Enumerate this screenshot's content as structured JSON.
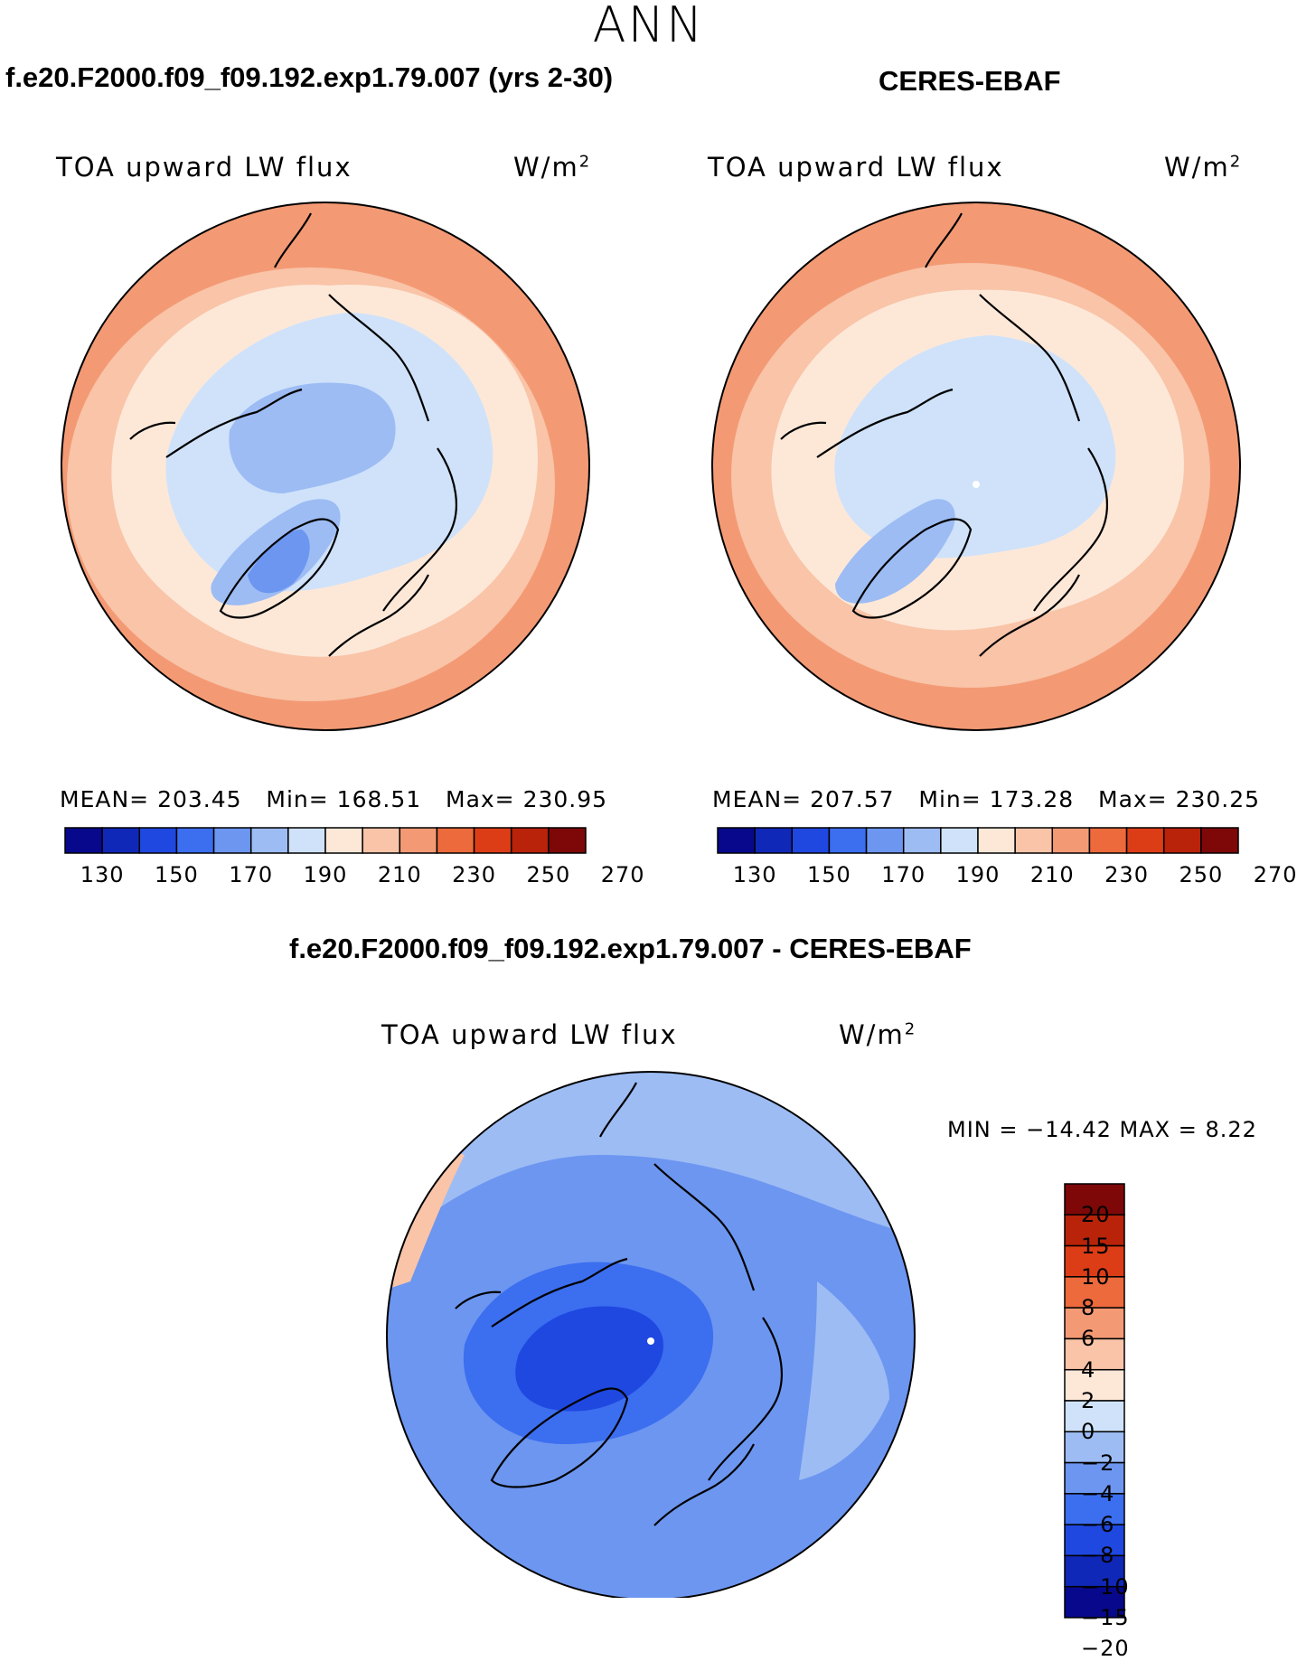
{
  "season": "ANN",
  "panels": {
    "model": {
      "title": "f.e20.F2000.f09_f09.192.exp1.79.007 (yrs 2-30)",
      "variable": "TOA upward LW flux",
      "units": "W/m",
      "units_exp": "2",
      "stats": {
        "mean_label": "MEAN=",
        "mean": "203.45",
        "min_label": "Min=",
        "min": "168.51",
        "max_label": "Max=",
        "max": "230.95"
      }
    },
    "obs": {
      "title": "CERES-EBAF",
      "variable": "TOA upward LW flux",
      "units": "W/m",
      "units_exp": "2",
      "stats": {
        "mean_label": "MEAN=",
        "mean": "207.57",
        "min_label": "Min=",
        "min": "173.28",
        "max_label": "Max=",
        "max": "230.25"
      }
    },
    "diff": {
      "title": "f.e20.F2000.f09_f09.192.exp1.79.007 - CERES-EBAF",
      "variable": "TOA upward LW flux",
      "units": "W/m",
      "units_exp": "2",
      "minmax": "MIN = −14.42 MAX =    8.22"
    }
  },
  "colorbar_abs": {
    "colors": [
      "#08088c",
      "#1028b8",
      "#1f48e0",
      "#3c6ef0",
      "#6c96f0",
      "#9dbcf4",
      "#cfe2fa",
      "#fde8d8",
      "#f9c4a8",
      "#f39a75",
      "#ec6a3c",
      "#dd3d16",
      "#b8230a",
      "#7e0808"
    ],
    "ticks": [
      "130",
      "150",
      "170",
      "190",
      "210",
      "230",
      "250",
      "270"
    ]
  },
  "colorbar_diff": {
    "colors": [
      "#7e0808",
      "#b8230a",
      "#dd3d16",
      "#ec6a3c",
      "#f39a75",
      "#f9c4a8",
      "#fde8d8",
      "#cfe2fa",
      "#9dbcf4",
      "#6c96f0",
      "#3c6ef0",
      "#1f48e0",
      "#1028b8",
      "#08088c"
    ],
    "ticks": [
      "20",
      "15",
      "10",
      "8",
      "6",
      "4",
      "2",
      "0",
      "−2",
      "−4",
      "−6",
      "−8",
      "−10",
      "−15",
      "−20"
    ]
  },
  "map_fills": {
    "abs_outer": "#f39a75",
    "abs_mid": "#f9c4a8",
    "abs_inner": "#fde8d8",
    "abs_arctic": "#cfe2fa",
    "abs_low": "#9dbcf4",
    "abs_lowest": "#6c96f0",
    "diff_base": "#6c96f0",
    "diff_light": "#9dbcf4",
    "diff_dark": "#3c6ef0",
    "diff_darker": "#1f48e0",
    "diff_warm": "#f9c4a8"
  }
}
